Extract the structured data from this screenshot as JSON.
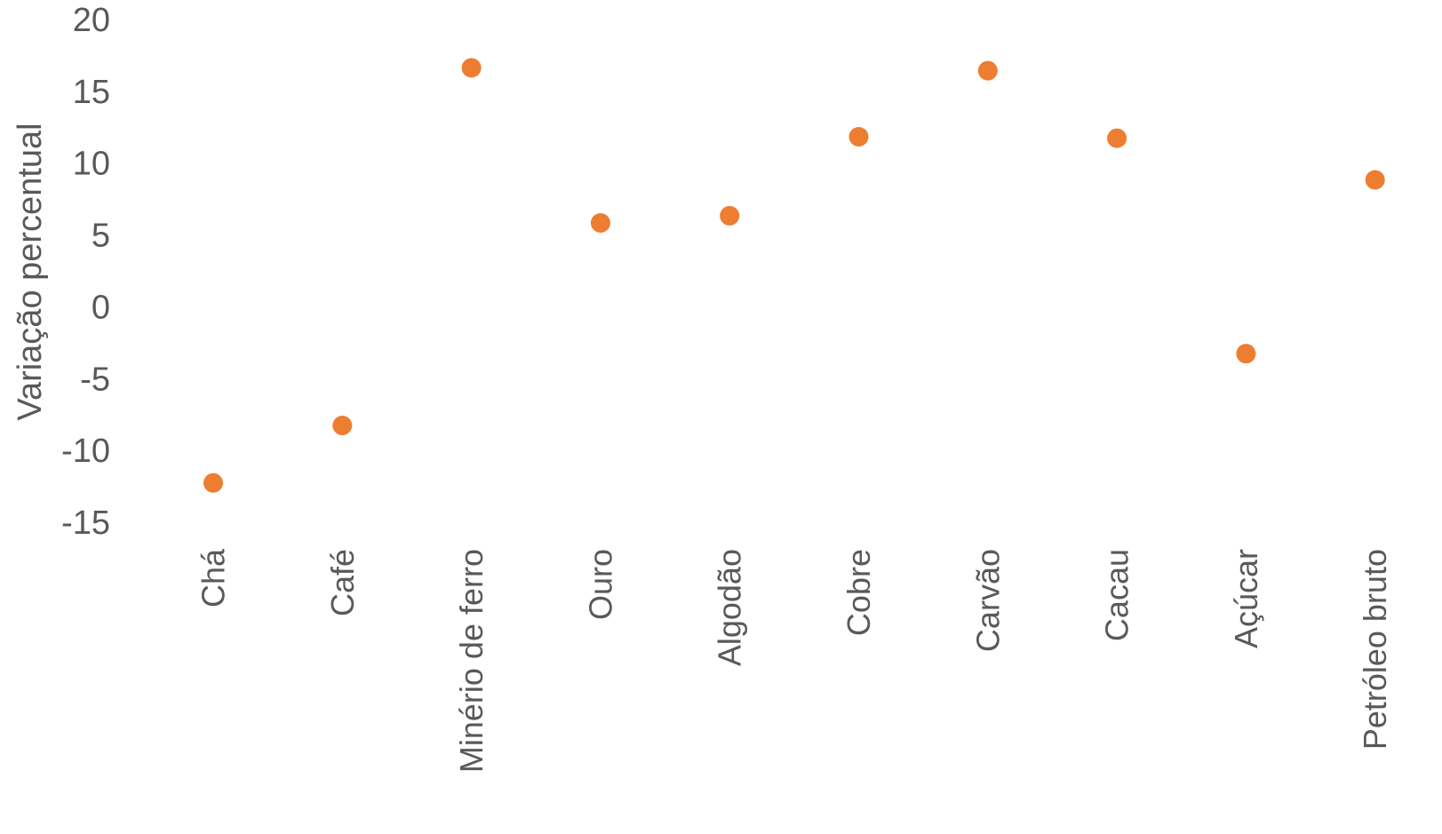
{
  "chart_data": {
    "type": "scatter",
    "title": "",
    "xlabel": "",
    "ylabel": "Variação percentual",
    "categories": [
      "Chá",
      "Café",
      "Minério de ferro",
      "Ouro",
      "Algodão",
      "Cobre",
      "Carvão",
      "Cacau",
      "Açúcar",
      "Petróleo bruto"
    ],
    "series": [
      {
        "values": [
          -12.2,
          -8.2,
          16.7,
          5.9,
          6.4,
          11.9,
          16.5,
          11.8,
          -3.2,
          8.9
        ]
      }
    ],
    "ylim": [
      -15,
      20
    ],
    "yticks": [
      20,
      15,
      10,
      5,
      0,
      -5,
      -10,
      -15
    ],
    "ytick_labels": [
      "20",
      "15",
      "10",
      "5",
      "0",
      "-5",
      "-10",
      "-15"
    ],
    "grid": false,
    "legend": "none",
    "colors": {
      "marker": "#ED7D31",
      "text": "#595959"
    }
  }
}
